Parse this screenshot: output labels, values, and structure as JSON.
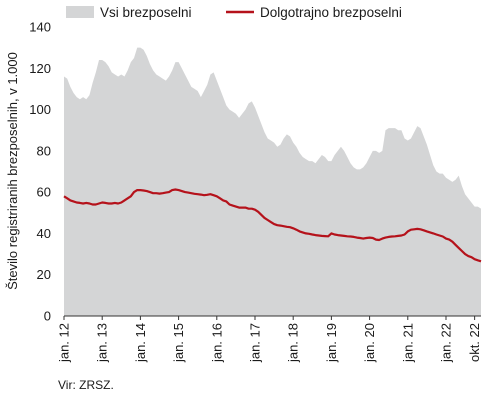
{
  "chart_data": {
    "type": "area",
    "source": "Vir: ZRSZ.",
    "ylabel": "Število registriranih brezposelnih, v 1.000",
    "ylim": [
      0,
      140
    ],
    "yticks": [
      "0",
      "20",
      "40",
      "60",
      "80",
      "100",
      "120",
      "140"
    ],
    "x_tick_labels": [
      "jan. 12",
      "jan. 13",
      "jan. 14",
      "jan. 15",
      "jan. 16",
      "jan. 17",
      "jan. 18",
      "jan. 19",
      "jan. 20",
      "jan. 21",
      "jan. 22",
      "okt. 22"
    ],
    "x_tick_months": [
      0,
      12,
      24,
      36,
      48,
      60,
      72,
      84,
      96,
      108,
      120,
      129
    ],
    "legend_position": "top",
    "grid": false,
    "series": [
      {
        "name": "Vsi brezposelni",
        "style": "area",
        "color": "#d4d5d6",
        "x": [
          0,
          1,
          2,
          3,
          4,
          5,
          6,
          7,
          8,
          9,
          10,
          11,
          12,
          13,
          14,
          15,
          16,
          17,
          18,
          19,
          20,
          21,
          22,
          23,
          24,
          25,
          26,
          27,
          28,
          29,
          30,
          31,
          32,
          33,
          34,
          35,
          36,
          37,
          38,
          39,
          40,
          41,
          42,
          43,
          44,
          45,
          46,
          47,
          48,
          49,
          50,
          51,
          52,
          53,
          54,
          55,
          56,
          57,
          58,
          59,
          60,
          61,
          62,
          63,
          64,
          65,
          66,
          67,
          68,
          69,
          70,
          71,
          72,
          73,
          74,
          75,
          76,
          77,
          78,
          79,
          80,
          81,
          82,
          83,
          84,
          85,
          86,
          87,
          88,
          89,
          90,
          91,
          92,
          93,
          94,
          95,
          96,
          97,
          98,
          99,
          100,
          101,
          102,
          103,
          104,
          105,
          106,
          107,
          108,
          109,
          110,
          111,
          112,
          113,
          114,
          115,
          116,
          117,
          118,
          119,
          120,
          121,
          122,
          123,
          124,
          125,
          126,
          127,
          128,
          129
        ],
        "values": [
          116,
          115,
          111,
          108,
          106,
          105,
          106,
          105,
          107,
          113,
          118,
          124,
          124,
          123,
          121,
          118,
          117,
          116,
          117,
          116,
          119,
          123,
          125,
          130,
          130,
          129,
          126,
          122,
          119,
          117,
          116,
          115,
          114,
          116,
          119,
          123,
          123,
          120,
          117,
          114,
          111,
          110,
          109,
          106,
          109,
          112,
          117,
          118,
          114,
          110,
          106,
          102,
          100,
          99,
          98,
          96,
          98,
          100,
          103,
          104,
          101,
          97,
          93,
          89,
          86,
          85,
          84,
          82,
          83,
          86,
          88,
          87,
          84,
          82,
          79,
          77,
          76,
          75,
          75,
          74,
          76,
          78,
          77,
          75,
          75,
          78,
          80,
          82,
          80,
          77,
          74,
          72,
          71,
          71,
          72,
          74,
          77,
          80,
          80,
          79,
          80,
          90,
          91,
          91,
          91,
          90,
          90,
          86,
          85,
          86,
          89,
          92,
          91,
          87,
          83,
          78,
          73,
          70,
          69,
          69,
          67,
          66,
          65,
          66,
          68,
          63,
          59,
          57,
          55,
          53
        ],
        "extra_x": [
          130,
          131
        ],
        "extra_values": [
          53,
          52
        ]
      },
      {
        "name": "Dolgotrajno brezposelni",
        "style": "line",
        "color": "#b5121b",
        "x": [
          0,
          1,
          2,
          3,
          4,
          5,
          6,
          7,
          8,
          9,
          10,
          11,
          12,
          13,
          14,
          15,
          16,
          17,
          18,
          19,
          20,
          21,
          22,
          23,
          24,
          25,
          26,
          27,
          28,
          29,
          30,
          31,
          32,
          33,
          34,
          35,
          36,
          37,
          38,
          39,
          40,
          41,
          42,
          43,
          44,
          45,
          46,
          47,
          48,
          49,
          50,
          51,
          52,
          53,
          54,
          55,
          56,
          57,
          58,
          59,
          60,
          61,
          62,
          63,
          64,
          65,
          66,
          67,
          68,
          69,
          70,
          71,
          72,
          73,
          74,
          75,
          76,
          77,
          78,
          79,
          80,
          81,
          82,
          83,
          84,
          85,
          86,
          87,
          88,
          89,
          90,
          91,
          92,
          93,
          94,
          95,
          96,
          97,
          98,
          99,
          100,
          101,
          102,
          103,
          104,
          105,
          106,
          107,
          108,
          109,
          110,
          111,
          112,
          113,
          114,
          115,
          116,
          117,
          118,
          119,
          120,
          121,
          122,
          123,
          124,
          125,
          126,
          127,
          128,
          129,
          130,
          131
        ],
        "values": [
          58,
          57,
          56,
          55.5,
          55,
          54.8,
          54.5,
          54.8,
          54.5,
          54,
          54,
          54.5,
          55,
          54.8,
          54.5,
          54.5,
          54.8,
          54.5,
          55,
          56,
          57,
          58,
          60,
          61,
          61,
          60.8,
          60.5,
          60,
          59.5,
          59.5,
          59.3,
          59.5,
          59.8,
          60,
          61,
          61.3,
          61,
          60.5,
          60,
          59.8,
          59.5,
          59.2,
          59,
          58.8,
          58.5,
          58.7,
          59,
          58.5,
          58,
          57,
          56,
          55.5,
          54,
          53.5,
          53,
          52.5,
          52.5,
          52.5,
          52,
          52,
          51.5,
          50.5,
          49,
          47.5,
          46.5,
          45.5,
          44.5,
          44,
          43.8,
          43.5,
          43.2,
          43,
          42.5,
          41.8,
          41,
          40.5,
          40,
          39.8,
          39.5,
          39.2,
          39,
          38.8,
          38.7,
          38.6,
          40,
          39.5,
          39.2,
          39,
          38.8,
          38.6,
          38.5,
          38.3,
          38,
          37.8,
          37.5,
          37.8,
          38,
          37.8,
          37,
          36.8,
          37.5,
          38,
          38.3,
          38.5,
          38.6,
          38.8,
          39,
          39.5,
          41,
          41.8,
          42,
          42.2,
          42,
          41.5,
          41,
          40.5,
          40,
          39.5,
          39,
          38.5,
          37.5,
          37,
          36,
          34.5,
          33,
          31.5,
          30,
          29,
          28.5,
          27.5,
          27,
          26.5
        ]
      }
    ]
  }
}
